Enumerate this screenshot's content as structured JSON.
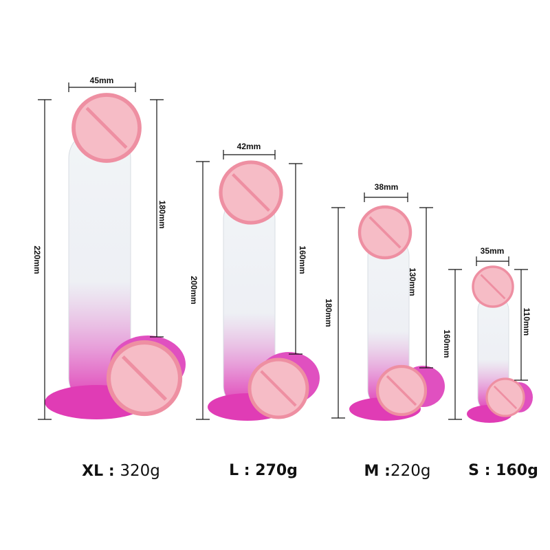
{
  "sizes": [
    {
      "size": "XL",
      "weight": "320g",
      "width": "45mm",
      "total_length": "220mm",
      "insertable_length": "180mm"
    },
    {
      "size": "L",
      "weight": "270g",
      "width": "42mm",
      "total_length": "200mm",
      "insertable_length": "160mm"
    },
    {
      "size": "M",
      "weight": "220g",
      "width": "38mm",
      "total_length": "180mm",
      "insertable_length": "130mm"
    },
    {
      "size": "S",
      "weight": "160g",
      "width": "35mm",
      "total_length": "160mm",
      "insertable_length": "110mm"
    }
  ],
  "separator": ":",
  "colors": {
    "product_top": "#e8eef2",
    "product_bottom": "#e040b8",
    "censor_fill": "#f6bcc6",
    "censor_stroke": "#ee8fa2"
  }
}
